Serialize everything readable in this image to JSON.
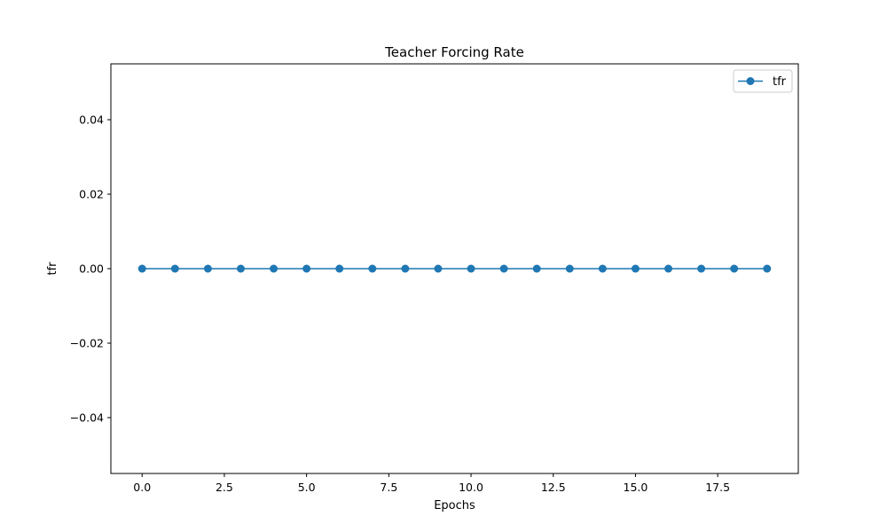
{
  "chart_data": {
    "type": "line",
    "title": "Teacher Forcing Rate",
    "xlabel": "Epochs",
    "ylabel": "tfr",
    "x": [
      0,
      1,
      2,
      3,
      4,
      5,
      6,
      7,
      8,
      9,
      10,
      11,
      12,
      13,
      14,
      15,
      16,
      17,
      18,
      19
    ],
    "series": [
      {
        "name": "tfr",
        "values": [
          0,
          0,
          0,
          0,
          0,
          0,
          0,
          0,
          0,
          0,
          0,
          0,
          0,
          0,
          0,
          0,
          0,
          0,
          0,
          0
        ],
        "color": "#1f77b4",
        "marker": "circle"
      }
    ],
    "xlim": [
      -0.95,
      19.95
    ],
    "ylim": [
      -0.055,
      0.055
    ],
    "xticks": [
      0.0,
      2.5,
      5.0,
      7.5,
      10.0,
      12.5,
      15.0,
      17.5
    ],
    "xtick_labels": [
      "0.0",
      "2.5",
      "5.0",
      "7.5",
      "10.0",
      "12.5",
      "15.0",
      "17.5"
    ],
    "yticks": [
      -0.04,
      -0.02,
      0.0,
      0.02,
      0.04
    ],
    "ytick_labels": [
      "−0.04",
      "−0.02",
      "0.00",
      "0.02",
      "0.04"
    ],
    "grid": false,
    "legend": "top-right"
  }
}
